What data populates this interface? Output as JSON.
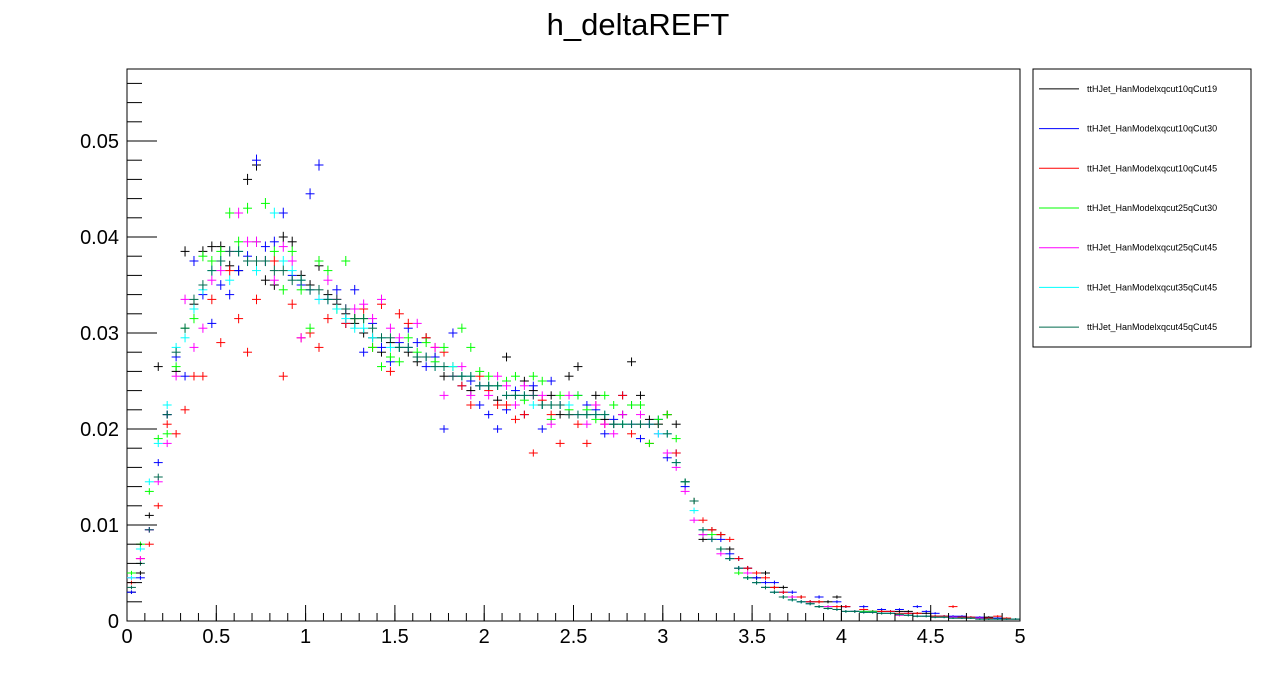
{
  "chart_data": {
    "type": "scatter",
    "title": "h_deltaREFT",
    "xlabel": "",
    "ylabel": "",
    "xlim": [
      0,
      5
    ],
    "ylim": [
      0,
      0.0575
    ],
    "x_ticks": [
      0,
      0.5,
      1,
      1.5,
      2,
      2.5,
      3,
      3.5,
      4,
      4.5,
      5
    ],
    "x_tick_labels": [
      "0",
      "0.5",
      "1",
      "1.5",
      "2",
      "2.5",
      "3",
      "3.5",
      "4",
      "4.5",
      "5"
    ],
    "y_ticks": [
      0,
      0.01,
      0.02,
      0.03,
      0.04,
      0.05
    ],
    "y_tick_labels": [
      "0",
      "0.01",
      "0.02",
      "0.03",
      "0.04",
      "0.05"
    ],
    "grid": false,
    "legend_position": "right",
    "bin_width": 0.05,
    "series": [
      {
        "name": "ttHJet_HanModelxqcut10qCut19",
        "color": "#000000",
        "values": [
          0.003,
          0.005,
          0.011,
          0.0265,
          0.0215,
          0.026,
          0.0385,
          0.033,
          0.0385,
          0.039,
          0.039,
          0.037,
          0.0365,
          0.046,
          0.0475,
          0.0355,
          0.035,
          0.04,
          0.0395,
          0.036,
          0.035,
          0.037,
          0.034,
          0.033,
          0.032,
          0.031,
          0.03,
          0.0295,
          0.028,
          0.029,
          0.0285,
          0.028,
          0.027,
          0.0295,
          0.0275,
          0.0255,
          0.0255,
          0.0255,
          0.024,
          0.0245,
          0.0245,
          0.023,
          0.0275,
          0.0235,
          0.025,
          0.024,
          0.0225,
          0.0235,
          0.0215,
          0.0255,
          0.0265,
          0.0215,
          0.0235,
          0.021,
          0.0205,
          0.0215,
          0.027,
          0.0235,
          0.021,
          0.0205,
          0.0215,
          0.0205,
          0.0145,
          0.0125,
          0.0085,
          0.0095,
          0.009,
          0.0075,
          0.0055,
          0.0055,
          0.0045,
          0.005,
          0.0035,
          0.0035,
          0.0025,
          0.0025,
          0.002,
          0.002,
          0.002,
          0.0025,
          0.0015,
          0.001,
          0.001,
          0.001,
          0.001,
          0.001,
          0.001,
          0.001,
          0.0008,
          0.0008,
          0.0005,
          0.0005,
          0.0004,
          0.0004,
          0.0003,
          0.0003,
          0.0004,
          0.0003,
          0.0002,
          0.0002
        ]
      },
      {
        "name": "ttHJet_HanModelxqcut10qCut30",
        "color": "#0000ff",
        "values": [
          0.003,
          0.0045,
          0.0095,
          0.0165,
          0.0215,
          0.0275,
          0.0255,
          0.0375,
          0.034,
          0.031,
          0.035,
          0.034,
          0.0365,
          0.038,
          0.048,
          0.039,
          0.0395,
          0.0425,
          0.036,
          0.035,
          0.0445,
          0.0475,
          0.0335,
          0.0345,
          0.031,
          0.0345,
          0.028,
          0.031,
          0.0285,
          0.027,
          0.029,
          0.0305,
          0.029,
          0.0265,
          0.0275,
          0.02,
          0.03,
          0.0245,
          0.025,
          0.0225,
          0.0215,
          0.02,
          0.022,
          0.024,
          0.0215,
          0.0245,
          0.02,
          0.025,
          0.0225,
          0.0215,
          0.0235,
          0.0225,
          0.022,
          0.0195,
          0.021,
          0.0235,
          0.0225,
          0.019,
          0.0205,
          0.021,
          0.017,
          0.0175,
          0.014,
          0.0125,
          0.009,
          0.0085,
          0.0085,
          0.007,
          0.0065,
          0.0055,
          0.0045,
          0.004,
          0.004,
          0.003,
          0.003,
          0.002,
          0.002,
          0.0025,
          0.0015,
          0.002,
          0.0015,
          0.001,
          0.0015,
          0.001,
          0.0012,
          0.001,
          0.0012,
          0.0008,
          0.0015,
          0.001,
          0.0008,
          0.0005,
          0.0005,
          0.0005,
          0.0004,
          0.0004,
          0.0003,
          0.0003,
          0.0002,
          0.0002
        ]
      },
      {
        "name": "ttHJet_HanModelxqcut10qCut45",
        "color": "#ff0000",
        "values": [
          0.004,
          0.0065,
          0.008,
          0.012,
          0.0205,
          0.0195,
          0.022,
          0.0255,
          0.0255,
          0.0335,
          0.029,
          0.0365,
          0.0315,
          0.028,
          0.0335,
          0.0375,
          0.0375,
          0.0255,
          0.033,
          0.0295,
          0.03,
          0.0285,
          0.0315,
          0.0335,
          0.031,
          0.0315,
          0.0325,
          0.0285,
          0.033,
          0.026,
          0.032,
          0.031,
          0.0275,
          0.0295,
          0.0285,
          0.028,
          0.0265,
          0.0245,
          0.0225,
          0.0255,
          0.024,
          0.0225,
          0.0225,
          0.021,
          0.0215,
          0.0175,
          0.023,
          0.0215,
          0.0185,
          0.0215,
          0.0205,
          0.0185,
          0.0225,
          0.0205,
          0.0205,
          0.0235,
          0.0195,
          0.0205,
          0.0185,
          0.0205,
          0.0215,
          0.0175,
          0.0145,
          0.0125,
          0.0105,
          0.0095,
          0.009,
          0.0085,
          0.0065,
          0.0055,
          0.005,
          0.0045,
          0.0035,
          0.003,
          0.0025,
          0.0025,
          0.002,
          0.002,
          0.0015,
          0.0015,
          0.0015,
          0.001,
          0.0012,
          0.001,
          0.001,
          0.001,
          0.0008,
          0.0008,
          0.0008,
          0.0005,
          0.0005,
          0.0005,
          0.0015,
          0.0004,
          0.0004,
          0.0003,
          0.0003,
          0.0005,
          0.0003,
          0.0002
        ]
      },
      {
        "name": "ttHJet_HanModelxqcut25qCut30",
        "color": "#00ff00",
        "values": [
          0.005,
          0.008,
          0.0135,
          0.019,
          0.0195,
          0.0265,
          0.0305,
          0.0315,
          0.038,
          0.0375,
          0.0385,
          0.0425,
          0.0395,
          0.043,
          0.0395,
          0.0435,
          0.0385,
          0.0345,
          0.0385,
          0.0345,
          0.0305,
          0.0375,
          0.0365,
          0.0325,
          0.0375,
          0.0315,
          0.0315,
          0.0285,
          0.0265,
          0.0275,
          0.027,
          0.0295,
          0.028,
          0.029,
          0.027,
          0.0285,
          0.0265,
          0.0305,
          0.0285,
          0.026,
          0.0255,
          0.0245,
          0.025,
          0.0255,
          0.023,
          0.0255,
          0.025,
          0.021,
          0.0235,
          0.022,
          0.0235,
          0.022,
          0.021,
          0.0235,
          0.0225,
          0.0205,
          0.0225,
          0.0225,
          0.0185,
          0.021,
          0.0215,
          0.019,
          0.0145,
          0.0125,
          0.009,
          0.009,
          0.0075,
          0.0065,
          0.005,
          0.0045,
          0.004,
          0.0035,
          0.003,
          0.0025,
          0.0025,
          0.002,
          0.0018,
          0.0015,
          0.0015,
          0.0012,
          0.001,
          0.001,
          0.001,
          0.001,
          0.0008,
          0.0008,
          0.0006,
          0.0006,
          0.0005,
          0.0005,
          0.0004,
          0.0004,
          0.0003,
          0.0003,
          0.0003,
          0.0002,
          0.0002,
          0.0002,
          0.0002,
          0.0002
        ]
      },
      {
        "name": "ttHJet_HanModelxqcut25qCut45",
        "color": "#ff00ff",
        "values": [
          0.0045,
          0.0065,
          0.0095,
          0.0145,
          0.0185,
          0.0255,
          0.0335,
          0.0285,
          0.0305,
          0.0355,
          0.0365,
          0.0385,
          0.0425,
          0.0395,
          0.0395,
          0.0375,
          0.0355,
          0.039,
          0.0375,
          0.0295,
          0.0345,
          0.0335,
          0.0355,
          0.0335,
          0.0325,
          0.0325,
          0.033,
          0.0315,
          0.0335,
          0.0305,
          0.0295,
          0.0285,
          0.031,
          0.0275,
          0.0285,
          0.0235,
          0.0255,
          0.0265,
          0.0235,
          0.0245,
          0.0235,
          0.0255,
          0.0245,
          0.0225,
          0.0245,
          0.0235,
          0.0235,
          0.0205,
          0.0225,
          0.0235,
          0.0215,
          0.0205,
          0.0225,
          0.0205,
          0.0195,
          0.0215,
          0.0205,
          0.0215,
          0.0205,
          0.0195,
          0.0175,
          0.016,
          0.0135,
          0.0105,
          0.009,
          0.0085,
          0.007,
          0.0065,
          0.0055,
          0.005,
          0.004,
          0.0035,
          0.003,
          0.0025,
          0.0025,
          0.002,
          0.0018,
          0.0015,
          0.0015,
          0.0012,
          0.001,
          0.001,
          0.0009,
          0.0009,
          0.0008,
          0.0008,
          0.0006,
          0.0006,
          0.0005,
          0.0005,
          0.0004,
          0.0004,
          0.0004,
          0.0003,
          0.0003,
          0.0003,
          0.0002,
          0.0002,
          0.0002,
          0.0002
        ]
      },
      {
        "name": "ttHJet_HanModelxqcut35qCut45",
        "color": "#00ffff",
        "values": [
          0.0045,
          0.0075,
          0.0145,
          0.0185,
          0.0225,
          0.0285,
          0.0295,
          0.0325,
          0.0345,
          0.0365,
          0.0375,
          0.0355,
          0.0385,
          0.0375,
          0.0365,
          0.0375,
          0.0425,
          0.0375,
          0.0365,
          0.0355,
          0.0345,
          0.0335,
          0.0335,
          0.0325,
          0.0315,
          0.0305,
          0.0305,
          0.0295,
          0.0295,
          0.0285,
          0.0285,
          0.0285,
          0.0275,
          0.0275,
          0.0265,
          0.0265,
          0.0265,
          0.0255,
          0.0255,
          0.0245,
          0.0245,
          0.0245,
          0.0235,
          0.0235,
          0.0235,
          0.0225,
          0.0225,
          0.0225,
          0.0225,
          0.0225,
          0.0215,
          0.0215,
          0.0215,
          0.0215,
          0.0205,
          0.0205,
          0.0205,
          0.0205,
          0.0205,
          0.0195,
          0.0195,
          0.0165,
          0.0145,
          0.0115,
          0.0095,
          0.0085,
          0.0075,
          0.0065,
          0.0055,
          0.0045,
          0.004,
          0.0035,
          0.003,
          0.0025,
          0.0022,
          0.002,
          0.0018,
          0.0015,
          0.0013,
          0.0012,
          0.001,
          0.001,
          0.0009,
          0.0009,
          0.0008,
          0.0008,
          0.0007,
          0.0006,
          0.0005,
          0.0005,
          0.0004,
          0.0004,
          0.0003,
          0.0003,
          0.0003,
          0.0002,
          0.0002,
          0.0002,
          0.0002,
          0.0002
        ]
      },
      {
        "name": "ttHJet_HanModelxqcut45qCut45",
        "color": "#006a4e",
        "values": [
          0.0035,
          0.006,
          0.0095,
          0.015,
          0.0215,
          0.028,
          0.0305,
          0.0335,
          0.035,
          0.0365,
          0.0375,
          0.0385,
          0.0385,
          0.0375,
          0.0375,
          0.0375,
          0.0365,
          0.0365,
          0.0355,
          0.0355,
          0.0345,
          0.0345,
          0.0335,
          0.0335,
          0.0325,
          0.0315,
          0.0315,
          0.0305,
          0.0295,
          0.0295,
          0.0285,
          0.0285,
          0.0275,
          0.0275,
          0.0265,
          0.0265,
          0.0255,
          0.0255,
          0.0255,
          0.0245,
          0.0245,
          0.0245,
          0.0235,
          0.0235,
          0.0235,
          0.0235,
          0.0225,
          0.0225,
          0.0225,
          0.0215,
          0.0215,
          0.0215,
          0.0215,
          0.0215,
          0.0205,
          0.0205,
          0.0205,
          0.0205,
          0.0205,
          0.0205,
          0.0195,
          0.0165,
          0.0145,
          0.0125,
          0.0095,
          0.0085,
          0.0075,
          0.0065,
          0.0055,
          0.0045,
          0.004,
          0.0035,
          0.003,
          0.0025,
          0.0022,
          0.002,
          0.0018,
          0.0015,
          0.0013,
          0.0012,
          0.001,
          0.001,
          0.0009,
          0.0009,
          0.0008,
          0.0008,
          0.0007,
          0.0006,
          0.0005,
          0.0005,
          0.0004,
          0.0004,
          0.0003,
          0.0003,
          0.0003,
          0.0002,
          0.0002,
          0.0002,
          0.0002,
          0.0002
        ]
      }
    ]
  }
}
